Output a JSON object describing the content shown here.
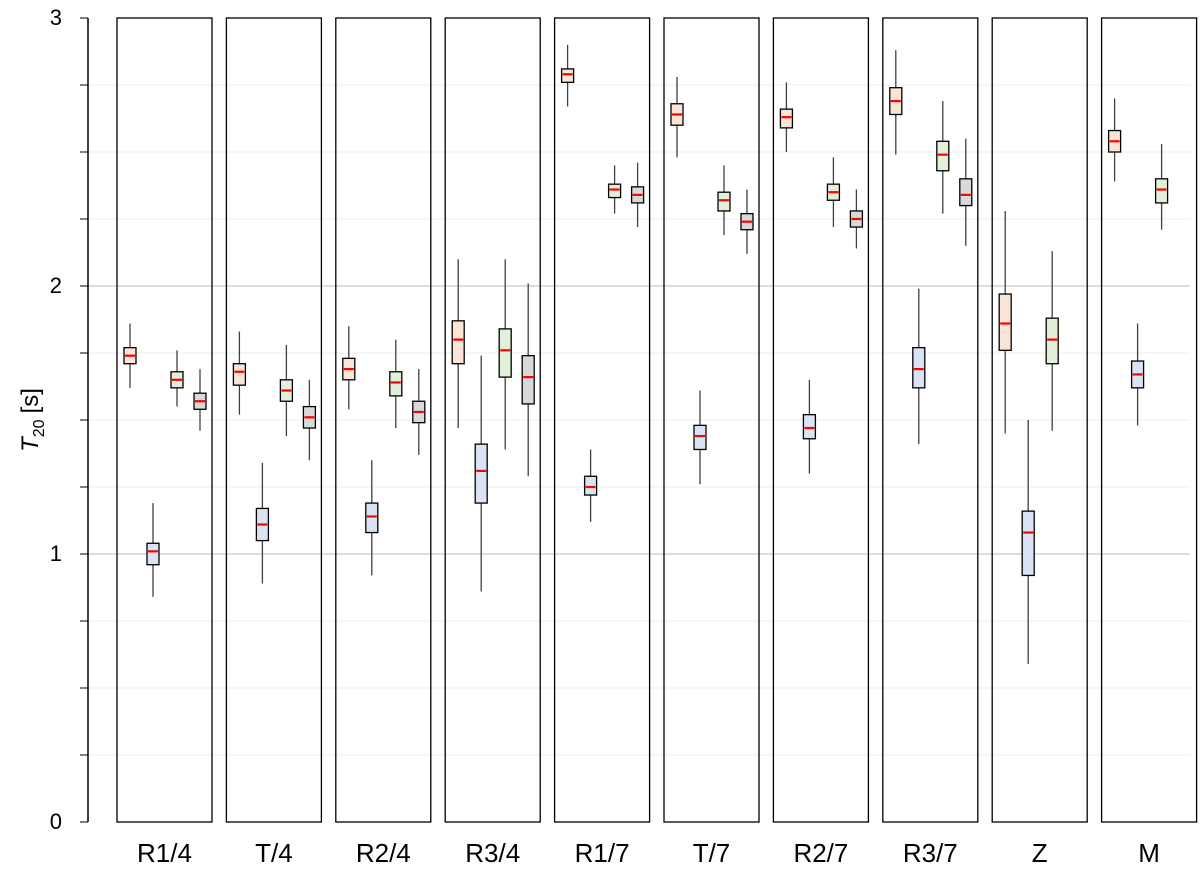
{
  "chart_data": {
    "type": "boxplot",
    "ylabel": {
      "symbol": "T",
      "subscript": "20",
      "unit": "[s]"
    },
    "ylim": [
      0,
      3
    ],
    "y_ticks": [
      0,
      1,
      2,
      3
    ],
    "grid": true,
    "box_colors": [
      "#fbe5d6",
      "#dae3f3",
      "#e2f0d9",
      "#d9d9d9"
    ],
    "median_color": "#ff0000",
    "groups": [
      {
        "label": "R1/4",
        "boxes": [
          {
            "min": 1.62,
            "q1": 1.71,
            "median": 1.74,
            "q3": 1.77,
            "max": 1.86
          },
          {
            "min": 0.84,
            "q1": 0.96,
            "median": 1.01,
            "q3": 1.04,
            "max": 1.19
          },
          {
            "min": 1.55,
            "q1": 1.62,
            "median": 1.65,
            "q3": 1.68,
            "max": 1.76
          },
          {
            "min": 1.46,
            "q1": 1.54,
            "median": 1.57,
            "q3": 1.6,
            "max": 1.69
          }
        ]
      },
      {
        "label": "T/4",
        "boxes": [
          {
            "min": 1.52,
            "q1": 1.63,
            "median": 1.68,
            "q3": 1.71,
            "max": 1.83
          },
          {
            "min": 0.89,
            "q1": 1.05,
            "median": 1.11,
            "q3": 1.17,
            "max": 1.34
          },
          {
            "min": 1.44,
            "q1": 1.57,
            "median": 1.61,
            "q3": 1.65,
            "max": 1.78
          },
          {
            "min": 1.35,
            "q1": 1.47,
            "median": 1.51,
            "q3": 1.55,
            "max": 1.65
          }
        ]
      },
      {
        "label": "R2/4",
        "boxes": [
          {
            "min": 1.54,
            "q1": 1.65,
            "median": 1.69,
            "q3": 1.73,
            "max": 1.85
          },
          {
            "min": 0.92,
            "q1": 1.08,
            "median": 1.14,
            "q3": 1.19,
            "max": 1.35
          },
          {
            "min": 1.47,
            "q1": 1.59,
            "median": 1.64,
            "q3": 1.68,
            "max": 1.8
          },
          {
            "min": 1.37,
            "q1": 1.49,
            "median": 1.53,
            "q3": 1.57,
            "max": 1.69
          }
        ]
      },
      {
        "label": "R3/4",
        "boxes": [
          {
            "min": 1.47,
            "q1": 1.71,
            "median": 1.8,
            "q3": 1.87,
            "max": 2.1
          },
          {
            "min": 0.86,
            "q1": 1.19,
            "median": 1.31,
            "q3": 1.41,
            "max": 1.74
          },
          {
            "min": 1.39,
            "q1": 1.66,
            "median": 1.76,
            "q3": 1.84,
            "max": 2.1
          },
          {
            "min": 1.29,
            "q1": 1.56,
            "median": 1.66,
            "q3": 1.74,
            "max": 2.01
          }
        ]
      },
      {
        "label": "R1/7",
        "boxes": [
          {
            "min": 2.67,
            "q1": 2.76,
            "median": 2.79,
            "q3": 2.81,
            "max": 2.9
          },
          {
            "min": 1.12,
            "q1": 1.22,
            "median": 1.25,
            "q3": 1.29,
            "max": 1.39
          },
          {
            "min": 2.27,
            "q1": 2.33,
            "median": 2.36,
            "q3": 2.38,
            "max": 2.45
          },
          {
            "min": 2.22,
            "q1": 2.31,
            "median": 2.34,
            "q3": 2.37,
            "max": 2.46
          }
        ]
      },
      {
        "label": "T/7",
        "boxes": [
          {
            "min": 2.48,
            "q1": 2.6,
            "median": 2.64,
            "q3": 2.68,
            "max": 2.78
          },
          {
            "min": 1.26,
            "q1": 1.39,
            "median": 1.44,
            "q3": 1.48,
            "max": 1.61
          },
          {
            "min": 2.19,
            "q1": 2.28,
            "median": 2.32,
            "q3": 2.35,
            "max": 2.45
          },
          {
            "min": 2.12,
            "q1": 2.21,
            "median": 2.24,
            "q3": 2.27,
            "max": 2.36
          }
        ]
      },
      {
        "label": "R2/7",
        "boxes": [
          {
            "min": 2.5,
            "q1": 2.59,
            "median": 2.63,
            "q3": 2.66,
            "max": 2.76
          },
          {
            "min": 1.3,
            "q1": 1.43,
            "median": 1.47,
            "q3": 1.52,
            "max": 1.65
          },
          {
            "min": 2.22,
            "q1": 2.32,
            "median": 2.35,
            "q3": 2.38,
            "max": 2.48
          },
          {
            "min": 2.14,
            "q1": 2.22,
            "median": 2.25,
            "q3": 2.28,
            "max": 2.36
          }
        ]
      },
      {
        "label": "R3/7",
        "boxes": [
          {
            "min": 2.49,
            "q1": 2.64,
            "median": 2.69,
            "q3": 2.74,
            "max": 2.88
          },
          {
            "min": 1.41,
            "q1": 1.62,
            "median": 1.69,
            "q3": 1.77,
            "max": 1.99
          },
          {
            "min": 2.27,
            "q1": 2.43,
            "median": 2.49,
            "q3": 2.54,
            "max": 2.69
          },
          {
            "min": 2.15,
            "q1": 2.3,
            "median": 2.34,
            "q3": 2.4,
            "max": 2.55
          }
        ]
      },
      {
        "label": "Z",
        "boxes": [
          {
            "min": 1.45,
            "q1": 1.76,
            "median": 1.86,
            "q3": 1.97,
            "max": 2.28
          },
          {
            "min": 0.59,
            "q1": 0.92,
            "median": 1.08,
            "q3": 1.16,
            "max": 1.5
          },
          {
            "min": 1.46,
            "q1": 1.71,
            "median": 1.8,
            "q3": 1.88,
            "max": 2.13
          }
        ]
      },
      {
        "label": "M",
        "boxes": [
          {
            "min": 2.39,
            "q1": 2.5,
            "median": 2.54,
            "q3": 2.58,
            "max": 2.7
          },
          {
            "min": 1.48,
            "q1": 1.62,
            "median": 1.67,
            "q3": 1.72,
            "max": 1.86
          },
          {
            "min": 2.21,
            "q1": 2.31,
            "median": 2.36,
            "q3": 2.4,
            "max": 2.53
          }
        ]
      }
    ]
  }
}
